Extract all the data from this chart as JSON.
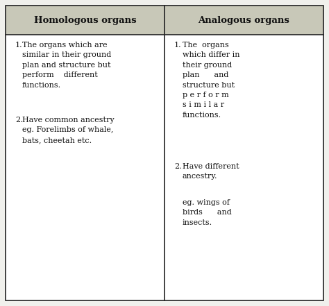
{
  "header_left": "Homologous organs",
  "header_right": "Analogous organs",
  "left_point1_num": "1.",
  "left_point1_text": "The organs which are\nsimilar in their ground\nplan and structure but\nperform    different\nfunctions.",
  "left_point2_num": "2.",
  "left_point2_text": "Have common ancestry\neg. Forelimbs of whale,\nbats, cheetah etc.",
  "right_point1_num": "1.",
  "right_point1_text": "The  organs\nwhich differ in\ntheir ground\nplan      and\nstructure but\np e r f o r m\ns i m i l a r\nfunctions.",
  "right_point2_num": "2.",
  "right_point2_text": "Have different\nancestry.",
  "right_point3_text": "eg. wings of\nbirds      and\ninsects.",
  "header_bg": "#c8c8b8",
  "cell_bg": "#f8f8f4",
  "border_color": "#222222",
  "header_fontsize": 9.5,
  "body_fontsize": 8.0,
  "fig_bg": "#f0f0ec",
  "fig_width": 4.74,
  "fig_height": 4.41,
  "dpi": 100
}
